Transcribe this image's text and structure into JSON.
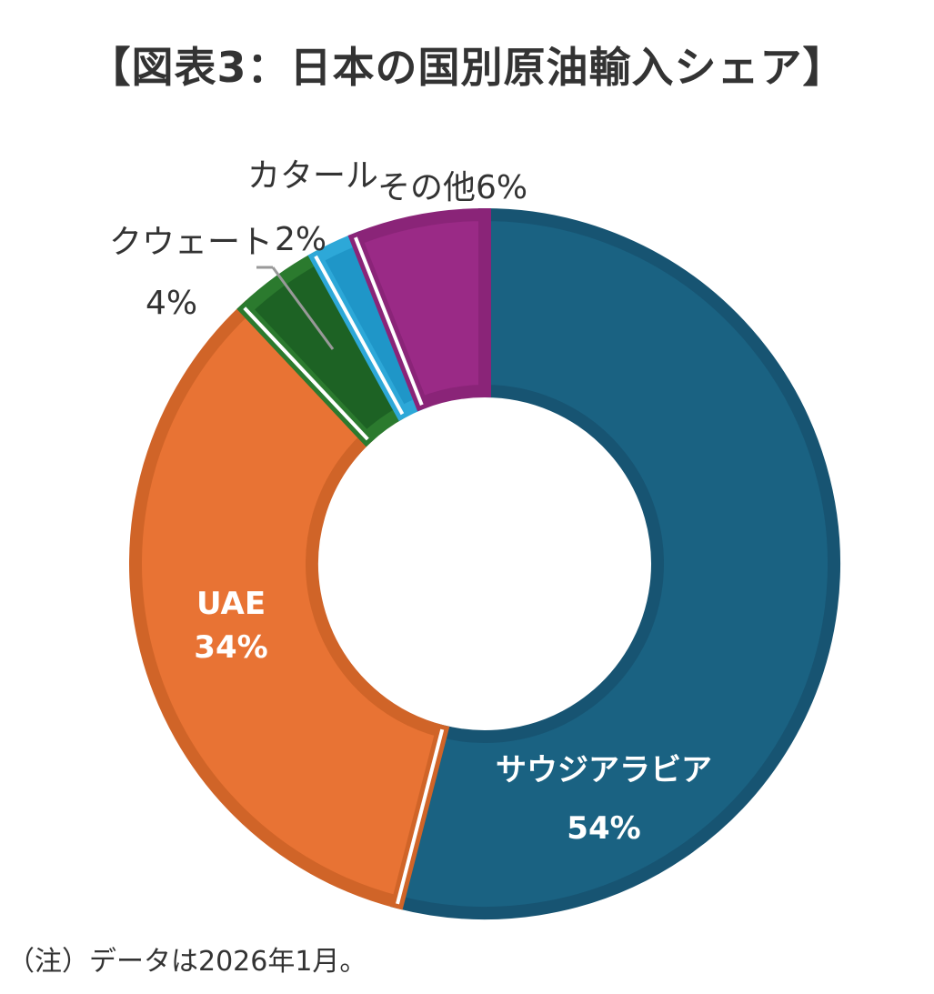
{
  "title": "【図表3：日本の国別原油輸入シェア】",
  "note": "（注）データは2026年1月。",
  "chart_data": {
    "type": "pie",
    "donut": true,
    "title": "【図表3：日本の国別原油輸入シェア】",
    "slices": [
      {
        "name": "サウジアラビア",
        "value": 54,
        "pct_label": "54%",
        "color": "#1a6282",
        "edge": "#175472"
      },
      {
        "name": "UAE",
        "value": 34,
        "pct_label": "34%",
        "color": "#e87334",
        "edge": "#d06428"
      },
      {
        "name": "クウェート",
        "value": 4,
        "pct_label": "4%",
        "color": "#1d6224",
        "edge": "#2b7a2e"
      },
      {
        "name": "カタール",
        "value": 2,
        "pct_label": "2%",
        "color": "#1f96c8",
        "edge": "#2da8d8"
      },
      {
        "name": "その他",
        "value": 6,
        "pct_label": "6%",
        "color": "#9a2a86",
        "edge": "#8a2478"
      }
    ],
    "labels": {
      "saudi_name": "サウジアラビア",
      "saudi_pct": "54%",
      "uae_name": "UAE",
      "uae_pct": "34%",
      "kuwait_name": "クウェート",
      "kuwait_pct": "4%",
      "qatar_name": "カタール",
      "qatar_pct": "2%",
      "other": "その他6%"
    }
  }
}
